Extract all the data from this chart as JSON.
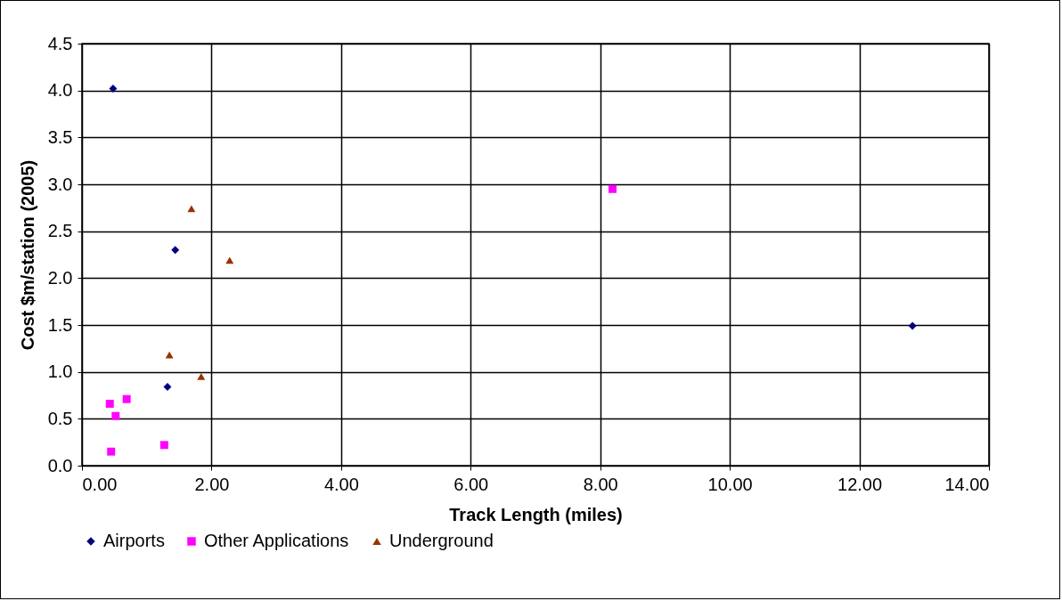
{
  "chart_data": {
    "type": "scatter",
    "xlabel": "Track Length (miles)",
    "ylabel": "Cost $m/station (2005)",
    "xlim": [
      0,
      14
    ],
    "ylim": [
      0,
      4.5
    ],
    "xticks": [
      {
        "value": 0,
        "label": "0.00"
      },
      {
        "value": 2,
        "label": "2.00"
      },
      {
        "value": 4,
        "label": "4.00"
      },
      {
        "value": 6,
        "label": "6.00"
      },
      {
        "value": 8,
        "label": "8.00"
      },
      {
        "value": 10,
        "label": "10.00"
      },
      {
        "value": 12,
        "label": "12.00"
      },
      {
        "value": 14,
        "label": "14.00"
      }
    ],
    "yticks": [
      {
        "value": 0,
        "label": "0.0"
      },
      {
        "value": 0.5,
        "label": "0.5"
      },
      {
        "value": 1,
        "label": "1.0"
      },
      {
        "value": 1.5,
        "label": "1.5"
      },
      {
        "value": 2,
        "label": "2.0"
      },
      {
        "value": 2.5,
        "label": "2.5"
      },
      {
        "value": 3,
        "label": "3.0"
      },
      {
        "value": 3.5,
        "label": "3.5"
      },
      {
        "value": 4,
        "label": "4.0"
      },
      {
        "value": 4.5,
        "label": "4.5"
      }
    ],
    "grid": true,
    "legend": "bottom",
    "series": [
      {
        "name": "Airports",
        "color": "#000080",
        "marker": "diamond",
        "x": [
          0.48,
          1.44,
          1.32,
          12.82
        ],
        "values": [
          4.02,
          2.3,
          0.84,
          1.49
        ]
      },
      {
        "name": "Other Applications",
        "color": "#ff00ff",
        "marker": "square",
        "x": [
          0.43,
          0.52,
          0.69,
          0.45,
          1.27,
          8.19
        ],
        "values": [
          0.66,
          0.53,
          0.71,
          0.15,
          0.22,
          2.95
        ]
      },
      {
        "name": "Underground",
        "color": "#993300",
        "marker": "triangle",
        "x": [
          1.69,
          2.28,
          1.35,
          1.84
        ],
        "values": [
          2.74,
          2.19,
          1.18,
          0.95
        ]
      }
    ]
  }
}
